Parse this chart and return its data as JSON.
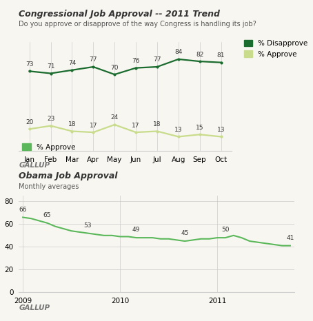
{
  "top_title": "Congressional Job Approval -- 2011 Trend",
  "top_subtitle": "Do you approve or disapprove of the way Congress is handling its job?",
  "months": [
    "Jan",
    "Feb",
    "Mar",
    "Apr",
    "May",
    "Jun",
    "Jul",
    "Aug",
    "Sep",
    "Oct"
  ],
  "disapprove": [
    73,
    71,
    74,
    77,
    70,
    76,
    77,
    84,
    82,
    81
  ],
  "approve_congress": [
    20,
    23,
    18,
    17,
    24,
    17,
    18,
    13,
    15,
    13
  ],
  "disapprove_color": "#1a6b2e",
  "approve_congress_color": "#c8dc8c",
  "gallup_label": "GALLUP",
  "bottom_title": "Obama Job Approval",
  "bottom_subtitle": "Monthly averages",
  "obama_approve_color": "#5ab85a",
  "obama_years": [
    2009,
    2010,
    2011
  ],
  "obama_x": [
    0,
    1,
    2,
    3,
    4,
    5,
    6,
    7,
    8,
    9,
    10,
    11,
    12,
    13,
    14,
    15,
    16,
    17,
    18,
    19,
    20,
    21,
    22,
    23,
    24,
    25,
    26,
    27,
    28,
    29,
    30,
    31,
    32,
    33
  ],
  "obama_y": [
    66,
    65,
    63,
    61,
    58,
    56,
    54,
    53,
    52,
    51,
    50,
    50,
    49,
    49,
    48,
    48,
    48,
    47,
    47,
    46,
    45,
    46,
    47,
    47,
    48,
    48,
    50,
    48,
    45,
    44,
    43,
    42,
    41,
    41
  ],
  "background_color": "#f8f6f0",
  "text_color": "#333333",
  "subtitle_color": "#555555",
  "gallup_color": "#777777",
  "grid_color": "#cccccc"
}
